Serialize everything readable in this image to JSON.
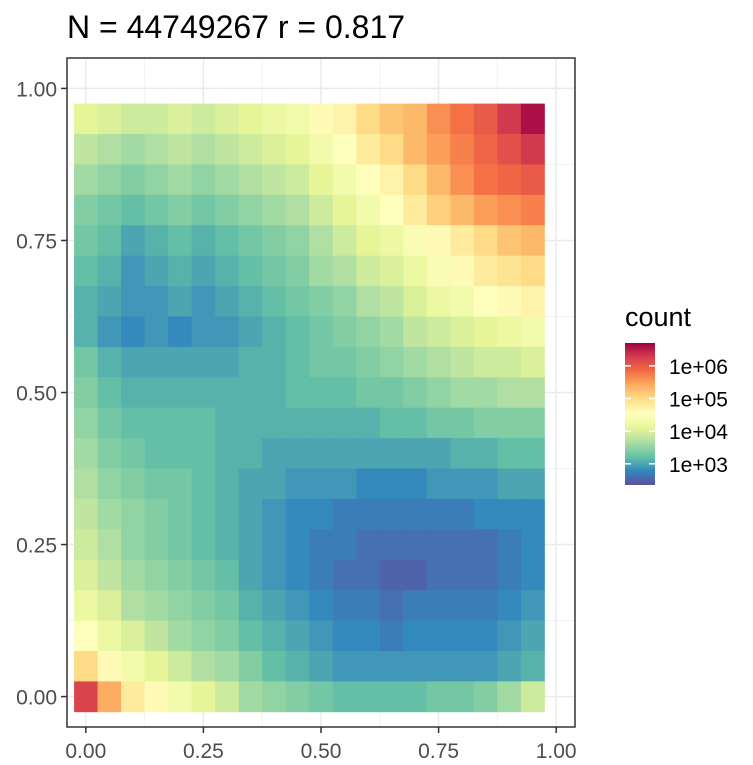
{
  "chart_data": {
    "type": "heatmap",
    "title": "N = 44749267 r = 0.817",
    "xlabel": "",
    "ylabel": "",
    "xlim": [
      -0.04,
      1.04
    ],
    "ylim": [
      -0.05,
      1.05
    ],
    "x_ticks": [
      0,
      0.25,
      0.5,
      0.75,
      1
    ],
    "x_tick_labels": [
      "0.00",
      "0.25",
      "0.50",
      "0.75",
      "1.00"
    ],
    "y_ticks": [
      0,
      0.25,
      0.5,
      0.75,
      1
    ],
    "y_tick_labels": [
      "0.00",
      "0.25",
      "0.50",
      "0.75",
      "1.00"
    ],
    "grid": true,
    "bins": 20,
    "bin_width": 0.05,
    "color_scale": "log10",
    "log10_count_range": [
      2.35,
      6.7
    ],
    "legend": {
      "title": "count",
      "position": "right",
      "breaks": [
        6,
        5,
        4,
        3
      ],
      "labels": [
        "1e+06",
        "1e+05",
        "1e+04",
        "1e+03"
      ]
    },
    "palette": [
      "#5e4fa2",
      "#3288bd",
      "#66c2a5",
      "#abdda4",
      "#e6f598",
      "#ffffbf",
      "#fee08b",
      "#fdae61",
      "#f46d43",
      "#d53e4f",
      "#9e0142"
    ],
    "log10_count_rows_top_to_bottom": [
      [
        4.1,
        4.0,
        3.9,
        3.9,
        4.0,
        3.9,
        4.0,
        4.1,
        4.2,
        4.3,
        4.6,
        4.7,
        5.0,
        5.2,
        5.3,
        5.6,
        5.8,
        6.0,
        6.3,
        6.6
      ],
      [
        3.8,
        3.7,
        3.6,
        3.7,
        3.8,
        3.7,
        3.8,
        3.9,
        4.0,
        4.1,
        4.3,
        4.5,
        4.8,
        5.0,
        5.3,
        5.5,
        5.7,
        5.9,
        6.1,
        6.3
      ],
      [
        3.6,
        3.5,
        3.4,
        3.5,
        3.6,
        3.5,
        3.6,
        3.7,
        3.8,
        3.9,
        4.1,
        4.3,
        4.5,
        4.7,
        5.0,
        5.3,
        5.6,
        5.8,
        5.9,
        6.0
      ],
      [
        3.4,
        3.3,
        3.2,
        3.3,
        3.4,
        3.3,
        3.4,
        3.5,
        3.6,
        3.7,
        3.9,
        4.1,
        4.3,
        4.5,
        4.8,
        5.1,
        5.3,
        5.5,
        5.6,
        5.7
      ],
      [
        3.3,
        3.2,
        3.0,
        3.1,
        3.2,
        3.1,
        3.2,
        3.3,
        3.4,
        3.5,
        3.7,
        3.9,
        4.1,
        4.2,
        4.4,
        4.6,
        4.8,
        5.0,
        5.2,
        5.3
      ],
      [
        3.2,
        3.1,
        2.9,
        3.0,
        3.1,
        3.0,
        3.1,
        3.2,
        3.3,
        3.4,
        3.6,
        3.7,
        3.9,
        4.0,
        4.2,
        4.4,
        4.6,
        4.8,
        4.9,
        5.0
      ],
      [
        3.1,
        3.0,
        2.9,
        2.9,
        3.0,
        2.9,
        3.0,
        3.1,
        3.2,
        3.3,
        3.4,
        3.5,
        3.7,
        3.8,
        4.0,
        4.2,
        4.3,
        4.5,
        4.6,
        4.7
      ],
      [
        3.1,
        2.9,
        2.8,
        2.9,
        2.8,
        2.9,
        2.9,
        3.0,
        3.1,
        3.2,
        3.3,
        3.4,
        3.5,
        3.6,
        3.8,
        3.9,
        4.0,
        4.1,
        4.2,
        4.3
      ],
      [
        3.3,
        3.1,
        3.0,
        3.0,
        3.0,
        3.0,
        3.0,
        3.1,
        3.1,
        3.2,
        3.3,
        3.3,
        3.4,
        3.5,
        3.6,
        3.7,
        3.8,
        3.9,
        3.9,
        4.0
      ],
      [
        3.4,
        3.2,
        3.1,
        3.1,
        3.1,
        3.1,
        3.1,
        3.1,
        3.1,
        3.2,
        3.2,
        3.2,
        3.3,
        3.3,
        3.4,
        3.5,
        3.6,
        3.6,
        3.7,
        3.7
      ],
      [
        3.5,
        3.3,
        3.2,
        3.2,
        3.2,
        3.2,
        3.1,
        3.1,
        3.1,
        3.1,
        3.1,
        3.1,
        3.1,
        3.2,
        3.2,
        3.3,
        3.3,
        3.4,
        3.4,
        3.4
      ],
      [
        3.6,
        3.4,
        3.3,
        3.2,
        3.2,
        3.2,
        3.1,
        3.1,
        3.0,
        3.0,
        3.0,
        3.0,
        3.0,
        3.0,
        3.0,
        3.0,
        3.1,
        3.1,
        3.2,
        3.2
      ],
      [
        3.7,
        3.5,
        3.4,
        3.3,
        3.3,
        3.2,
        3.1,
        3.0,
        3.0,
        2.9,
        2.9,
        2.9,
        2.8,
        2.8,
        2.8,
        2.9,
        2.9,
        2.9,
        3.0,
        3.0
      ],
      [
        3.8,
        3.6,
        3.5,
        3.4,
        3.3,
        3.2,
        3.1,
        3.0,
        2.9,
        2.8,
        2.8,
        2.7,
        2.7,
        2.7,
        2.7,
        2.7,
        2.7,
        2.8,
        2.8,
        2.8
      ],
      [
        3.9,
        3.7,
        3.5,
        3.4,
        3.3,
        3.2,
        3.1,
        3.0,
        2.9,
        2.8,
        2.7,
        2.7,
        2.6,
        2.6,
        2.6,
        2.6,
        2.6,
        2.6,
        2.7,
        2.8
      ],
      [
        4.0,
        3.8,
        3.6,
        3.5,
        3.4,
        3.3,
        3.2,
        3.0,
        2.9,
        2.8,
        2.7,
        2.6,
        2.6,
        2.5,
        2.5,
        2.6,
        2.6,
        2.6,
        2.7,
        2.8
      ],
      [
        4.2,
        4.0,
        3.7,
        3.6,
        3.5,
        3.4,
        3.3,
        3.1,
        3.0,
        2.9,
        2.8,
        2.7,
        2.7,
        2.6,
        2.7,
        2.7,
        2.7,
        2.7,
        2.8,
        2.9
      ],
      [
        4.5,
        4.2,
        4.0,
        3.8,
        3.6,
        3.5,
        3.4,
        3.2,
        3.1,
        3.0,
        2.9,
        2.8,
        2.8,
        2.7,
        2.8,
        2.8,
        2.8,
        2.8,
        2.9,
        3.0
      ],
      [
        5.0,
        4.6,
        4.3,
        4.1,
        3.9,
        3.7,
        3.6,
        3.4,
        3.2,
        3.1,
        3.0,
        2.9,
        2.9,
        2.9,
        2.9,
        2.9,
        2.9,
        2.9,
        3.0,
        3.1
      ],
      [
        6.2,
        5.4,
        4.8,
        4.6,
        4.3,
        4.1,
        3.9,
        3.6,
        3.5,
        3.4,
        3.3,
        3.2,
        3.2,
        3.2,
        3.2,
        3.3,
        3.3,
        3.4,
        3.6,
        3.9
      ]
    ]
  }
}
